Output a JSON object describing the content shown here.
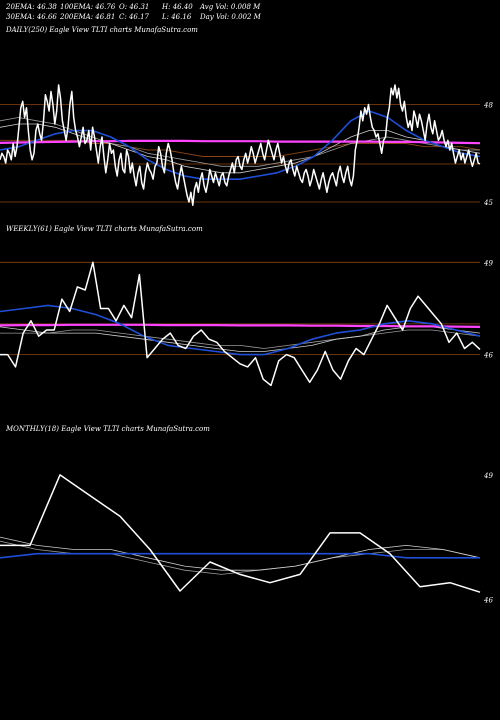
{
  "header": {
    "ema20": "20EMA: 46.38",
    "ema100": "100EMA: 46.76",
    "open": "O: 46.31",
    "high": "H: 46.40",
    "avg_vol": "Avg Vol: 0.008  M",
    "ema30": "30EMA: 46.66",
    "ema200": "200EMA: 46.81",
    "close": "C: 46.17",
    "low": "L: 46.16",
    "day_vol": "Day Vol: 0.002  M"
  },
  "panels": {
    "daily": {
      "label": "DAILY(250)  Eagle  View  TLTI charts MunafaSutra.com"
    },
    "weekly": {
      "label": "WEEKLY(61)  Eagle  View  TLTI charts MunafaSutra.com"
    },
    "monthly": {
      "label": "MONTHLY(18)  Eagle  View  TLTI charts MunafaSutra.com"
    }
  },
  "colors": {
    "background": "#000000",
    "price": "#ffffff",
    "ema_blue": "#1f4fd8",
    "ema_magenta": "#ff44ff",
    "level_line": "#8b4513",
    "ema_grey": "#cccccc"
  },
  "chart_data": [
    {
      "type": "line",
      "title": "DAILY(250)",
      "ylim": [
        44.6,
        48.6
      ],
      "y_ticks": [
        {
          "value": 48,
          "label": "48"
        },
        {
          "value": 45,
          "label": "45"
        }
      ],
      "levels": [
        48,
        45,
        46.17
      ],
      "series": [
        {
          "role": "price",
          "values": [
            46.3,
            46.5,
            46.4,
            46.2,
            46.6,
            46.5,
            46.3,
            46.8,
            46.4,
            46.7,
            47.3,
            47.9,
            48.1,
            47.6,
            47.9,
            47.2,
            46.6,
            46.3,
            46.5,
            47.2,
            47.4,
            47.1,
            46.9,
            47.5,
            48.3,
            48.1,
            47.8,
            48.4,
            48.0,
            47.4,
            47.8,
            48.6,
            48.2,
            47.5,
            47.2,
            46.9,
            47.3,
            48.0,
            48.4,
            47.6,
            47.2,
            47.0,
            46.7,
            47.0,
            47.3,
            46.8,
            46.9,
            47.2,
            46.6,
            47.3,
            47.0,
            46.6,
            46.2,
            46.7,
            47.0,
            46.4,
            45.9,
            46.3,
            46.8,
            46.5,
            46.6,
            46.1,
            45.8,
            46.3,
            46.5,
            46.0,
            45.9,
            46.6,
            46.4,
            45.9,
            46.2,
            45.8,
            45.5,
            45.9,
            46.1,
            45.6,
            45.4,
            45.9,
            46.2,
            46.0,
            45.9,
            45.7,
            46.1,
            46.2,
            46.7,
            46.5,
            46.1,
            45.9,
            46.5,
            46.8,
            46.6,
            46.3,
            45.9,
            45.6,
            45.4,
            45.8,
            46.1,
            45.8,
            45.5,
            45.2,
            45.0,
            45.3,
            44.9,
            45.4,
            45.6,
            45.3,
            45.7,
            45.9,
            45.5,
            45.3,
            45.6,
            46.0,
            45.8,
            45.6,
            45.9,
            45.7,
            45.5,
            45.8,
            45.9,
            45.6,
            45.5,
            45.8,
            46.0,
            46.2,
            45.9,
            46.3,
            46.4,
            46.1,
            46.0,
            46.3,
            46.5,
            46.2,
            46.4,
            46.7,
            46.5,
            46.2,
            46.4,
            46.6,
            46.8,
            46.5,
            46.3,
            46.6,
            46.9,
            46.7,
            46.5,
            46.3,
            46.6,
            46.8,
            46.5,
            46.2,
            46.4,
            46.1,
            45.9,
            46.2,
            46.3,
            46.0,
            45.8,
            46.1,
            45.9,
            45.7,
            45.6,
            45.9,
            46.0,
            45.8,
            45.5,
            45.7,
            46.0,
            45.8,
            45.6,
            45.4,
            45.7,
            45.9,
            45.6,
            45.3,
            45.6,
            45.8,
            45.9,
            45.7,
            45.5,
            45.9,
            46.1,
            45.8,
            45.6,
            45.9,
            46.1,
            45.7,
            45.5,
            45.8,
            46.6,
            46.9,
            47.3,
            47.8,
            47.5,
            47.9,
            47.7,
            48.0,
            47.6,
            47.3,
            47.2,
            47.0,
            47.1,
            46.8,
            46.5,
            46.9,
            47.0,
            47.6,
            47.9,
            48.5,
            48.3,
            48.6,
            48.2,
            48.5,
            48.0,
            47.8,
            48.1,
            47.6,
            47.3,
            47.5,
            47.2,
            47.8,
            47.6,
            47.3,
            47.7,
            47.5,
            47.2,
            46.9,
            47.4,
            47.7,
            47.3,
            47.1,
            47.5,
            47.2,
            46.9,
            47.0,
            47.2,
            46.9,
            46.7,
            46.9,
            46.6,
            46.8,
            46.5,
            46.2,
            46.4,
            46.6,
            46.3,
            46.5,
            46.2,
            46.4,
            46.6,
            46.3,
            46.1,
            46.3,
            46.5,
            46.2,
            46.17
          ]
        },
        {
          "role": "ema-blue",
          "values": [
            46.6,
            46.7,
            46.9,
            47.1,
            47.2,
            47.2,
            47.0,
            46.7,
            46.3,
            46.0,
            45.8,
            45.7,
            45.7,
            45.7,
            45.8,
            45.9,
            46.1,
            46.4,
            46.9,
            47.5,
            47.8,
            47.6,
            47.2,
            46.9,
            46.7,
            46.5,
            46.4
          ]
        },
        {
          "role": "ema-grey-1",
          "values": [
            47.3,
            47.4,
            47.4,
            47.3,
            47.1,
            46.9,
            46.8,
            46.6,
            46.4,
            46.3,
            46.1,
            46.0,
            45.9,
            45.9,
            46.0,
            46.1,
            46.2,
            46.4,
            46.7,
            47.0,
            47.2,
            47.2,
            47.0,
            46.9,
            46.7,
            46.6,
            46.5
          ]
        },
        {
          "role": "ema-grey-2",
          "values": [
            47.5,
            47.6,
            47.5,
            47.4,
            47.2,
            47.0,
            46.8,
            46.7,
            46.5,
            46.4,
            46.3,
            46.2,
            46.1,
            46.1,
            46.1,
            46.2,
            46.3,
            46.4,
            46.6,
            46.8,
            46.9,
            47.0,
            46.9,
            46.8,
            46.7,
            46.6,
            46.6
          ]
        },
        {
          "role": "ema-brown",
          "values": [
            46.9,
            46.9,
            46.9,
            46.9,
            46.9,
            46.8,
            46.8,
            46.7,
            46.6,
            46.6,
            46.5,
            46.4,
            46.4,
            46.4,
            46.4,
            46.4,
            46.5,
            46.6,
            46.7,
            46.8,
            46.8,
            46.8,
            46.8,
            46.7,
            46.7,
            46.7,
            46.6
          ]
        },
        {
          "role": "ema-magenta",
          "values": [
            46.82,
            46.83,
            46.84,
            46.85,
            46.86,
            46.87,
            46.87,
            46.88,
            46.88,
            46.88,
            46.88,
            46.87,
            46.87,
            46.87,
            46.87,
            46.86,
            46.86,
            46.86,
            46.86,
            46.86,
            46.86,
            46.85,
            46.85,
            46.84,
            46.83,
            46.82,
            46.81
          ]
        }
      ]
    },
    {
      "type": "line",
      "title": "WEEKLY(61)",
      "ylim": [
        44.2,
        49.4
      ],
      "y_ticks": [
        {
          "value": 49,
          "label": "49"
        },
        {
          "value": 46,
          "label": "46"
        }
      ],
      "levels": [
        49,
        46,
        47.0
      ],
      "series": [
        {
          "role": "price",
          "values": [
            46.0,
            46.0,
            45.6,
            46.7,
            47.1,
            46.6,
            46.8,
            46.8,
            47.8,
            47.4,
            48.2,
            48.1,
            49.0,
            47.5,
            47.5,
            47.1,
            47.6,
            47.2,
            48.6,
            45.9,
            46.2,
            46.5,
            46.7,
            46.3,
            46.2,
            46.6,
            46.8,
            46.5,
            46.4,
            46.1,
            45.9,
            45.7,
            45.6,
            45.9,
            45.2,
            45.0,
            45.8,
            46.0,
            45.9,
            45.5,
            45.1,
            45.5,
            46.1,
            45.5,
            45.2,
            45.8,
            46.2,
            46.0,
            46.5,
            47.0,
            47.6,
            47.2,
            46.8,
            47.5,
            47.9,
            47.6,
            47.3,
            47.0,
            46.4,
            46.7,
            46.2,
            46.4,
            46.17
          ]
        },
        {
          "role": "ema-blue",
          "values": [
            47.4,
            47.5,
            47.6,
            47.5,
            47.3,
            47.0,
            46.6,
            46.3,
            46.2,
            46.1,
            46.0,
            46.0,
            46.2,
            46.5,
            46.7,
            46.8,
            47.0,
            47.1,
            47.0,
            46.8,
            46.6
          ]
        },
        {
          "role": "ema-grey-1",
          "values": [
            46.9,
            46.8,
            46.7,
            46.7,
            46.7,
            46.6,
            46.5,
            46.4,
            46.3,
            46.2,
            46.1,
            46.1,
            46.2,
            46.3,
            46.5,
            46.6,
            46.8,
            46.9,
            46.9,
            46.8,
            46.7
          ]
        },
        {
          "role": "ema-grey-2",
          "values": [
            46.7,
            46.7,
            46.7,
            46.8,
            46.8,
            46.7,
            46.6,
            46.5,
            46.4,
            46.3,
            46.3,
            46.2,
            46.3,
            46.4,
            46.5,
            46.6,
            46.7,
            46.8,
            46.8,
            46.7,
            46.6
          ]
        },
        {
          "role": "ema-magenta",
          "values": [
            46.95,
            46.96,
            46.96,
            46.97,
            46.97,
            46.97,
            46.97,
            46.96,
            46.96,
            46.96,
            46.95,
            46.95,
            46.95,
            46.94,
            46.94,
            46.93,
            46.93,
            46.92,
            46.92,
            46.91,
            46.9
          ]
        }
      ]
    },
    {
      "type": "line",
      "title": "MONTHLY(18)",
      "ylim": [
        45.5,
        49.6
      ],
      "y_ticks": [
        {
          "value": 49,
          "label": "49"
        },
        {
          "value": 46,
          "label": "46"
        }
      ],
      "levels": [],
      "series": [
        {
          "role": "price",
          "values": [
            47.3,
            47.3,
            49.0,
            48.5,
            48.0,
            47.2,
            46.2,
            46.9,
            46.6,
            46.4,
            46.6,
            47.6,
            47.6,
            47.1,
            46.3,
            46.4,
            46.17
          ]
        },
        {
          "role": "ema-blue",
          "values": [
            47.0,
            47.1,
            47.1,
            47.1,
            47.1,
            47.1,
            47.1,
            47.1,
            47.1,
            47.1,
            47.1,
            47.0,
            47.0,
            47.0
          ]
        },
        {
          "role": "ema-grey-1",
          "values": [
            47.5,
            47.3,
            47.2,
            47.2,
            47.0,
            46.8,
            46.7,
            46.7,
            46.8,
            47.0,
            47.2,
            47.3,
            47.2,
            47.0
          ]
        },
        {
          "role": "ema-grey-2",
          "values": [
            47.4,
            47.2,
            47.1,
            47.1,
            46.9,
            46.7,
            46.6,
            46.7,
            46.8,
            47.0,
            47.1,
            47.2,
            47.2,
            47.0
          ]
        }
      ]
    }
  ]
}
